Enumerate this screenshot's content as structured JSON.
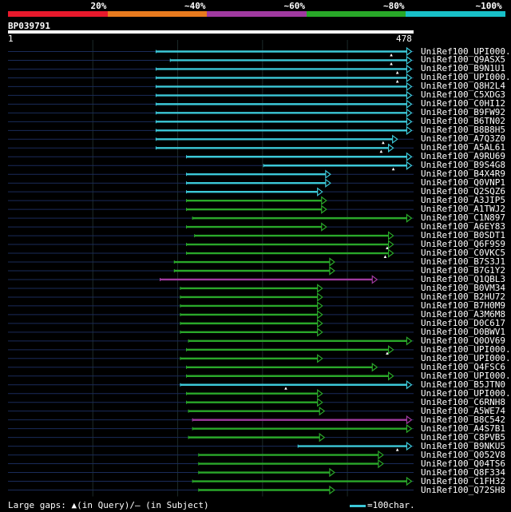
{
  "scale": {
    "labels": [
      "20%",
      "~40%",
      "~60%",
      "~80%",
      "~100%"
    ],
    "colors": [
      "#e8192c",
      "#e87a1e",
      "#a03aa0",
      "#28a828",
      "#18c0c8"
    ]
  },
  "query": {
    "id": "BP039791",
    "start": "1",
    "end": "478",
    "length": 478
  },
  "hits": [
    {
      "label": "UniRef100_UPI000...",
      "start": 0.365,
      "end": 0.995,
      "color": "#3cc8d8",
      "mark": 0.945
    },
    {
      "label": "UniRef100_Q9ASX5",
      "start": 0.4,
      "end": 0.995,
      "color": "#3cc8d8",
      "mark": 0.945
    },
    {
      "label": "UniRef100_B9N1U1",
      "start": 0.365,
      "end": 0.995,
      "color": "#3cc8d8",
      "mark": 0.96
    },
    {
      "label": "UniRef100_UPI000...",
      "start": 0.365,
      "end": 0.995,
      "color": "#3cc8d8",
      "mark": 0.96
    },
    {
      "label": "UniRef100_Q8H2L4",
      "start": 0.365,
      "end": 0.995,
      "color": "#3cc8d8",
      "mark": null
    },
    {
      "label": "UniRef100_C5XDG3",
      "start": 0.365,
      "end": 0.995,
      "color": "#3cc8d8",
      "mark": null
    },
    {
      "label": "UniRef100_C0HI12",
      "start": 0.365,
      "end": 0.995,
      "color": "#3cc8d8",
      "mark": null
    },
    {
      "label": "UniRef100_B9FW92",
      "start": 0.365,
      "end": 0.995,
      "color": "#3cc8d8",
      "mark": null
    },
    {
      "label": "UniRef100_B6TN02",
      "start": 0.365,
      "end": 0.995,
      "color": "#3cc8d8",
      "mark": null
    },
    {
      "label": "UniRef100_B8B8H5",
      "start": 0.365,
      "end": 0.995,
      "color": "#3cc8d8",
      "mark": null
    },
    {
      "label": "UniRef100_A7Q3Z0",
      "start": 0.365,
      "end": 0.96,
      "color": "#3cc8d8",
      "mark": 0.925
    },
    {
      "label": "UniRef100_A5AL61",
      "start": 0.365,
      "end": 0.95,
      "color": "#3cc8d8",
      "mark": 0.92
    },
    {
      "label": "UniRef100_A9RU69",
      "start": 0.44,
      "end": 0.995,
      "color": "#3cc8d8",
      "mark": null
    },
    {
      "label": "UniRef100_B9S4G8",
      "start": 0.63,
      "end": 0.995,
      "color": "#3cc8d8",
      "mark": 0.95
    },
    {
      "label": "UniRef100_B4X4R9",
      "start": 0.44,
      "end": 0.795,
      "color": "#3cc8d8",
      "mark": null
    },
    {
      "label": "UniRef100_Q0VNP1",
      "start": 0.44,
      "end": 0.795,
      "color": "#3cc8d8",
      "mark": null
    },
    {
      "label": "UniRef100_Q2SQZ6",
      "start": 0.44,
      "end": 0.775,
      "color": "#3cc8d8",
      "mark": null
    },
    {
      "label": "UniRef100_A3JIP5",
      "start": 0.44,
      "end": 0.785,
      "color": "#2aa82a",
      "mark": null
    },
    {
      "label": "UniRef100_A1TWJ2",
      "start": 0.44,
      "end": 0.785,
      "color": "#2aa82a",
      "mark": null
    },
    {
      "label": "UniRef100_C1N897",
      "start": 0.455,
      "end": 0.995,
      "color": "#2aa82a",
      "mark": null
    },
    {
      "label": "UniRef100_A6EY83",
      "start": 0.44,
      "end": 0.785,
      "color": "#2aa82a",
      "mark": null
    },
    {
      "label": "UniRef100_B0SDT1",
      "start": 0.46,
      "end": 0.95,
      "color": "#2aa82a",
      "mark": null
    },
    {
      "label": "UniRef100_Q6F9S9",
      "start": 0.44,
      "end": 0.95,
      "color": "#2aa82a",
      "mark": 0.935
    },
    {
      "label": "UniRef100_C0VKC5",
      "start": 0.44,
      "end": 0.95,
      "color": "#2aa82a",
      "mark": 0.93
    },
    {
      "label": "UniRef100_B7S3J1",
      "start": 0.41,
      "end": 0.805,
      "color": "#2aa82a",
      "mark": null
    },
    {
      "label": "UniRef100_B7G1Y2",
      "start": 0.41,
      "end": 0.805,
      "color": "#2aa82a",
      "mark": null
    },
    {
      "label": "UniRef100_Q1QBL3",
      "start": 0.375,
      "end": 0.91,
      "color": "#a03aa0",
      "mark": null
    },
    {
      "label": "UniRef100_B0VM34",
      "start": 0.425,
      "end": 0.775,
      "color": "#2aa82a",
      "mark": null
    },
    {
      "label": "UniRef100_B2HU72",
      "start": 0.425,
      "end": 0.775,
      "color": "#2aa82a",
      "mark": null
    },
    {
      "label": "UniRef100_B7H0M9",
      "start": 0.425,
      "end": 0.775,
      "color": "#2aa82a",
      "mark": null
    },
    {
      "label": "UniRef100_A3M6M8",
      "start": 0.425,
      "end": 0.775,
      "color": "#2aa82a",
      "mark": null
    },
    {
      "label": "UniRef100_D0C617",
      "start": 0.425,
      "end": 0.775,
      "color": "#2aa82a",
      "mark": null
    },
    {
      "label": "UniRef100_D0BWV1",
      "start": 0.425,
      "end": 0.775,
      "color": "#2aa82a",
      "mark": null
    },
    {
      "label": "UniRef100_Q0OV69",
      "start": 0.445,
      "end": 0.995,
      "color": "#2aa82a",
      "mark": null
    },
    {
      "label": "UniRef100_UPI000...",
      "start": 0.44,
      "end": 0.95,
      "color": "#2aa82a",
      "mark": 0.935
    },
    {
      "label": "UniRef100_UPI000...",
      "start": 0.425,
      "end": 0.775,
      "color": "#2aa82a",
      "mark": null
    },
    {
      "label": "UniRef100_Q4FSC6",
      "start": 0.44,
      "end": 0.91,
      "color": "#2aa82a",
      "mark": null
    },
    {
      "label": "UniRef100_UPI000...",
      "start": 0.44,
      "end": 0.95,
      "color": "#2aa82a",
      "mark": null
    },
    {
      "label": "UniRef100_B5JTN0",
      "start": 0.425,
      "end": 0.995,
      "color": "#3cc8d8",
      "mark": 0.685
    },
    {
      "label": "UniRef100_UPI000...",
      "start": 0.44,
      "end": 0.775,
      "color": "#2aa82a",
      "mark": null
    },
    {
      "label": "UniRef100_C6RNH8",
      "start": 0.44,
      "end": 0.775,
      "color": "#2aa82a",
      "mark": null
    },
    {
      "label": "UniRef100_A5WE74",
      "start": 0.445,
      "end": 0.78,
      "color": "#2aa82a",
      "mark": null
    },
    {
      "label": "UniRef100_B8C542",
      "start": 0.455,
      "end": 0.995,
      "color": "#a03aa0",
      "mark": null
    },
    {
      "label": "UniRef100_A4S7B1",
      "start": 0.455,
      "end": 0.995,
      "color": "#2aa82a",
      "mark": null
    },
    {
      "label": "UniRef100_C8PVB5",
      "start": 0.445,
      "end": 0.78,
      "color": "#2aa82a",
      "mark": null
    },
    {
      "label": "UniRef100_B9NKU5",
      "start": 0.715,
      "end": 0.995,
      "color": "#3cc8d8",
      "mark": 0.96
    },
    {
      "label": "UniRef100_Q052V8",
      "start": 0.47,
      "end": 0.925,
      "color": "#2aa82a",
      "mark": null
    },
    {
      "label": "UniRef100_Q04TS6",
      "start": 0.47,
      "end": 0.925,
      "color": "#2aa82a",
      "mark": null
    },
    {
      "label": "UniRef100_Q8F334",
      "start": 0.47,
      "end": 0.805,
      "color": "#2aa82a",
      "mark": null
    },
    {
      "label": "UniRef100_C1FH32",
      "start": 0.455,
      "end": 0.995,
      "color": "#2aa82a",
      "mark": null
    },
    {
      "label": "UniRef100_Q72SH8",
      "start": 0.47,
      "end": 0.805,
      "color": "#2aa82a",
      "mark": null
    }
  ],
  "footer": {
    "gaps_text": "Large gaps: ▲(in Query)/– (in Subject)",
    "legend_text": "=100char."
  }
}
